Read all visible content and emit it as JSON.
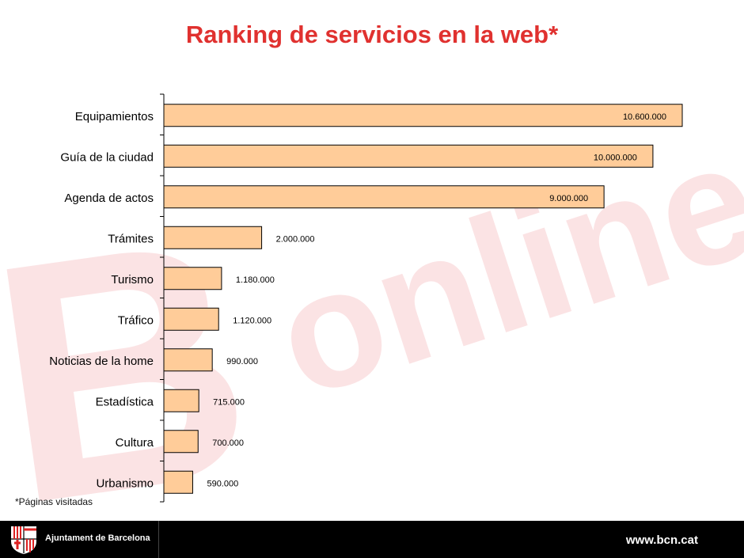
{
  "title": "Ranking de servicios en la web*",
  "footnote": "*Páginas visitadas",
  "footer": {
    "organization": "Ajuntament de Barcelona",
    "url": "www.bcn.cat",
    "background": "#000000"
  },
  "watermark": {
    "text": "B online",
    "color": "#fbe3e4"
  },
  "colors": {
    "bar_fill": "#ffcc99",
    "bar_stroke": "#000000",
    "title": "#e0312f"
  },
  "chart_data": {
    "type": "bar",
    "orientation": "horizontal",
    "title": "Ranking de servicios en la web*",
    "categories": [
      "Equipamientos",
      "Guía de la ciudad",
      "Agenda de actos",
      "Trámites",
      "Turismo",
      "Tráfico",
      "Noticias de la home",
      "Estadística",
      "Cultura",
      "Urbanismo"
    ],
    "values": [
      10600000,
      10000000,
      9000000,
      2000000,
      1180000,
      1120000,
      990000,
      715000,
      700000,
      590000
    ],
    "data_labels": [
      "10.600.000",
      "10.000.000",
      "9.000.000",
      "2.000.000",
      "1.180.000",
      "1.120.000",
      "990.000",
      "715.000",
      "700.000",
      "590.000"
    ],
    "xlim": [
      0,
      10600000
    ],
    "grid": false,
    "legend": "none"
  }
}
